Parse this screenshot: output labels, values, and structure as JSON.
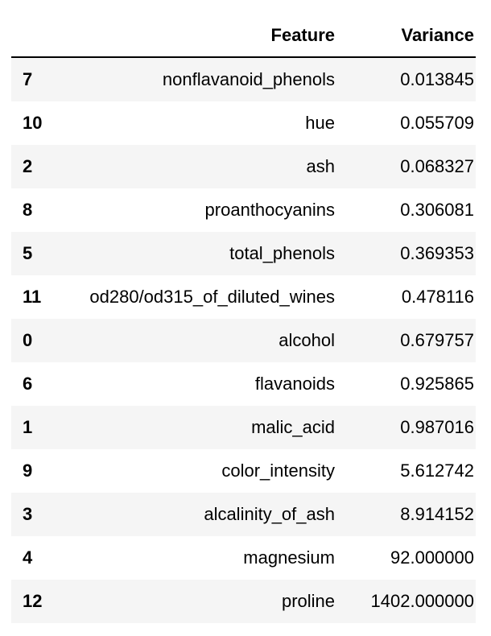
{
  "table": {
    "columns": {
      "index": "",
      "feature": "Feature",
      "variance": "Variance"
    },
    "rows": [
      {
        "index": "7",
        "feature": "nonflavanoid_phenols",
        "variance": "0.013845"
      },
      {
        "index": "10",
        "feature": "hue",
        "variance": "0.055709"
      },
      {
        "index": "2",
        "feature": "ash",
        "variance": "0.068327"
      },
      {
        "index": "8",
        "feature": "proanthocyanins",
        "variance": "0.306081"
      },
      {
        "index": "5",
        "feature": "total_phenols",
        "variance": "0.369353"
      },
      {
        "index": "11",
        "feature": "od280/od315_of_diluted_wines",
        "variance": "0.478116"
      },
      {
        "index": "0",
        "feature": "alcohol",
        "variance": "0.679757"
      },
      {
        "index": "6",
        "feature": "flavanoids",
        "variance": "0.925865"
      },
      {
        "index": "1",
        "feature": "malic_acid",
        "variance": "0.987016"
      },
      {
        "index": "9",
        "feature": "color_intensity",
        "variance": "5.612742"
      },
      {
        "index": "3",
        "feature": "alcalinity_of_ash",
        "variance": "8.914152"
      },
      {
        "index": "4",
        "feature": "magnesium",
        "variance": "92.000000"
      },
      {
        "index": "12",
        "feature": "proline",
        "variance": "1402.000000"
      }
    ]
  }
}
